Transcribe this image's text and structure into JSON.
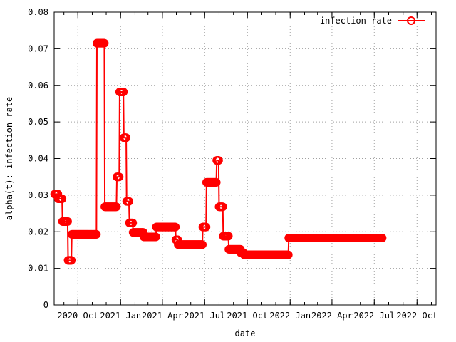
{
  "chart_data": {
    "type": "line",
    "title": "",
    "xlabel": "date",
    "ylabel": "alpha(t): infection rate",
    "xlim": [
      "2020-08-11",
      "2022-11-11"
    ],
    "ylim": [
      0,
      0.08
    ],
    "grid": true,
    "legend": "top-right",
    "x_ticks": [
      {
        "date": "2020-10-01",
        "label": "2020-Oct"
      },
      {
        "date": "2021-01-01",
        "label": "2021-Jan"
      },
      {
        "date": "2021-04-01",
        "label": "2021-Apr"
      },
      {
        "date": "2021-07-01",
        "label": "2021-Jul"
      },
      {
        "date": "2021-10-01",
        "label": "2021-Oct"
      },
      {
        "date": "2022-01-01",
        "label": "2022-Jan"
      },
      {
        "date": "2022-04-01",
        "label": "2022-Apr"
      },
      {
        "date": "2022-07-01",
        "label": "2022-Jul"
      },
      {
        "date": "2022-10-01",
        "label": "2022-Oct"
      }
    ],
    "y_ticks": [
      "0",
      "0.01",
      "0.02",
      "0.03",
      "0.04",
      "0.05",
      "0.06",
      "0.07",
      "0.08"
    ],
    "series": [
      {
        "name": "infection rate",
        "color": "#ff0000",
        "marker": "circle",
        "segments": [
          {
            "start": "2020-08-12",
            "end": "2020-08-19",
            "value": 0.0303
          },
          {
            "start": "2020-08-20",
            "end": "2020-08-28",
            "value": 0.029
          },
          {
            "start": "2020-08-29",
            "end": "2020-09-09",
            "value": 0.0228
          },
          {
            "start": "2020-09-10",
            "end": "2020-09-17",
            "value": 0.0122
          },
          {
            "start": "2020-09-18",
            "end": "2020-11-10",
            "value": 0.0193
          },
          {
            "start": "2020-11-11",
            "end": "2020-11-27",
            "value": 0.0715
          },
          {
            "start": "2020-11-28",
            "end": "2020-12-23",
            "value": 0.0268
          },
          {
            "start": "2020-12-24",
            "end": "2020-12-29",
            "value": 0.035
          },
          {
            "start": "2020-12-30",
            "end": "2021-01-07",
            "value": 0.0582
          },
          {
            "start": "2021-01-08",
            "end": "2021-01-13",
            "value": 0.0457
          },
          {
            "start": "2021-01-14",
            "end": "2021-01-19",
            "value": 0.0283
          },
          {
            "start": "2021-01-20",
            "end": "2021-01-27",
            "value": 0.0224
          },
          {
            "start": "2021-01-28",
            "end": "2021-02-19",
            "value": 0.0198
          },
          {
            "start": "2021-02-20",
            "end": "2021-03-18",
            "value": 0.0186
          },
          {
            "start": "2021-03-19",
            "end": "2021-04-29",
            "value": 0.0213
          },
          {
            "start": "2021-04-30",
            "end": "2021-05-04",
            "value": 0.0178
          },
          {
            "start": "2021-05-05",
            "end": "2021-06-26",
            "value": 0.0165
          },
          {
            "start": "2021-06-27",
            "end": "2021-07-04",
            "value": 0.0213
          },
          {
            "start": "2021-07-05",
            "end": "2021-07-26",
            "value": 0.0335
          },
          {
            "start": "2021-07-27",
            "end": "2021-07-31",
            "value": 0.0395
          },
          {
            "start": "2021-08-01",
            "end": "2021-08-09",
            "value": 0.0268
          },
          {
            "start": "2021-08-10",
            "end": "2021-08-21",
            "value": 0.0188
          },
          {
            "start": "2021-08-22",
            "end": "2021-09-16",
            "value": 0.0152
          },
          {
            "start": "2021-09-17",
            "end": "2021-09-23",
            "value": 0.0142
          },
          {
            "start": "2021-09-24",
            "end": "2021-12-28",
            "value": 0.0137
          },
          {
            "start": "2021-12-29",
            "end": "2022-07-18",
            "value": 0.0183
          }
        ]
      }
    ]
  }
}
